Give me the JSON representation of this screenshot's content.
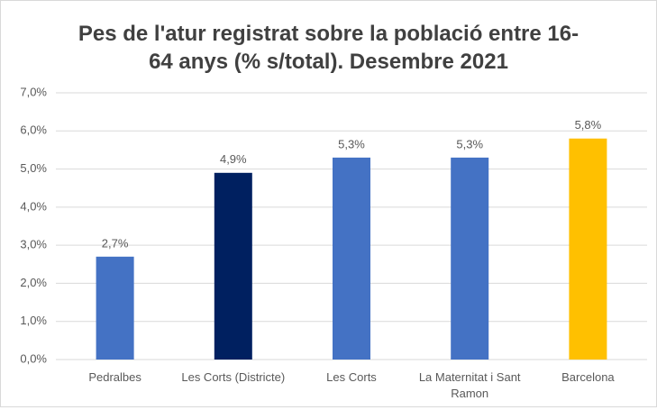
{
  "chart_data": {
    "type": "bar",
    "title": "Pes de l'atur registrat sobre la població entre 16-64 anys (% s/total). Desembre 2021",
    "categories": [
      "Pedralbes",
      "Les Corts (Districte)",
      "Les Corts",
      "La Maternitat i Sant Ramon",
      "Barcelona"
    ],
    "values": [
      2.7,
      4.9,
      5.3,
      5.3,
      5.8
    ],
    "value_labels": [
      "2,7%",
      "4,9%",
      "5,3%",
      "5,3%",
      "5,8%"
    ],
    "colors": [
      "#4472c4",
      "#002060",
      "#4472c4",
      "#4472c4",
      "#ffc000"
    ],
    "ylim": [
      0,
      7
    ],
    "yticks": [
      {
        "value": 0,
        "label": "0,0%"
      },
      {
        "value": 1,
        "label": "1,0%"
      },
      {
        "value": 2,
        "label": "2,0%"
      },
      {
        "value": 3,
        "label": "3,0%"
      },
      {
        "value": 4,
        "label": "4,0%"
      },
      {
        "value": 5,
        "label": "5,0%"
      },
      {
        "value": 6,
        "label": "6,0%"
      },
      {
        "value": 7,
        "label": "7,0%"
      }
    ],
    "grid": true
  }
}
